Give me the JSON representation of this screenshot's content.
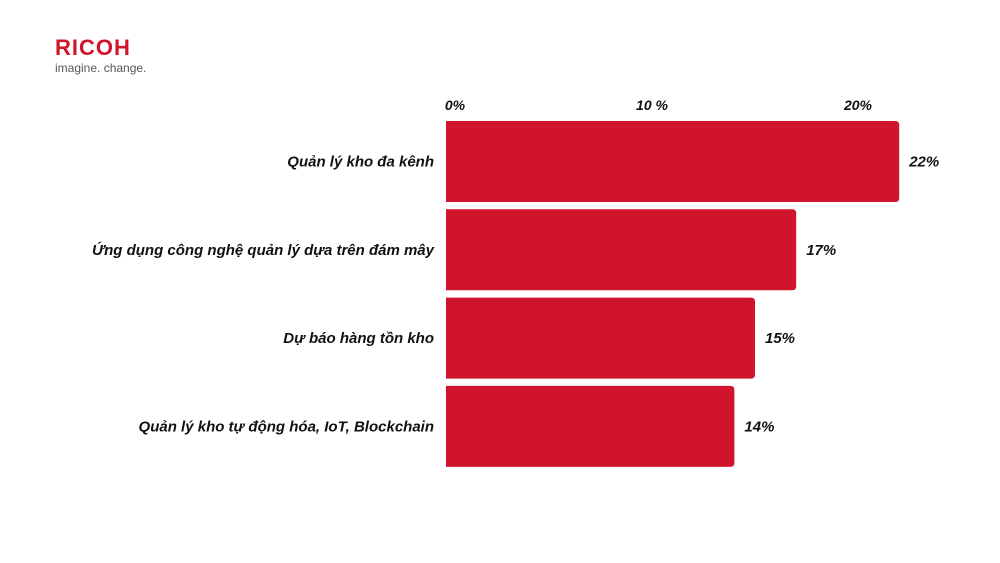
{
  "logo": {
    "wordmark": "RICOH",
    "tagline": "imagine. change."
  },
  "colors": {
    "bar": "#cf142b",
    "brand": "#cf142b",
    "text": "#111111"
  },
  "chart_data": {
    "type": "bar",
    "orientation": "horizontal",
    "categories": [
      "Quản lý kho đa kênh",
      "Ứng dụng công nghệ quản lý dựa trên đám mây",
      "Dự báo hàng tồn kho",
      "Quản lý kho tự động hóa, IoT, Blockchain"
    ],
    "values": [
      22,
      17,
      15,
      14
    ],
    "value_labels": [
      "22%",
      "17%",
      "15%",
      "14%"
    ],
    "x_ticks": [
      0,
      10,
      20
    ],
    "x_tick_labels": [
      "0%",
      "10 %",
      "20%"
    ],
    "x_axis_position": "top",
    "xlim": [
      0,
      22
    ],
    "grid": false,
    "legend": "none"
  }
}
